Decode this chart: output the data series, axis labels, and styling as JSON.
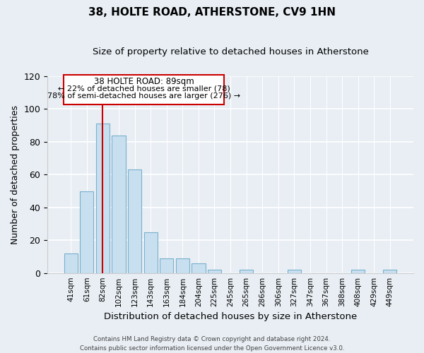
{
  "title": "38, HOLTE ROAD, ATHERSTONE, CV9 1HN",
  "subtitle": "Size of property relative to detached houses in Atherstone",
  "xlabel": "Distribution of detached houses by size in Atherstone",
  "ylabel": "Number of detached properties",
  "bar_labels": [
    "41sqm",
    "61sqm",
    "82sqm",
    "102sqm",
    "123sqm",
    "143sqm",
    "163sqm",
    "184sqm",
    "204sqm",
    "225sqm",
    "245sqm",
    "265sqm",
    "286sqm",
    "306sqm",
    "327sqm",
    "347sqm",
    "367sqm",
    "388sqm",
    "408sqm",
    "429sqm",
    "449sqm"
  ],
  "bar_values": [
    12,
    50,
    91,
    84,
    63,
    25,
    9,
    9,
    6,
    2,
    0,
    2,
    0,
    0,
    2,
    0,
    0,
    0,
    2,
    0,
    2
  ],
  "bar_color": "#c8dff0",
  "bar_edge_color": "#7ab0cc",
  "vline_x": 2,
  "vline_color": "#cc0000",
  "ylim": [
    0,
    120
  ],
  "yticks": [
    0,
    20,
    40,
    60,
    80,
    100,
    120
  ],
  "annotation_title": "38 HOLTE ROAD: 89sqm",
  "annotation_line1": "← 22% of detached houses are smaller (78)",
  "annotation_line2": "78% of semi-detached houses are larger (276) →",
  "annotation_box_color": "#ffffff",
  "annotation_box_edge": "#cc0000",
  "footnote1": "Contains HM Land Registry data © Crown copyright and database right 2024.",
  "footnote2": "Contains public sector information licensed under the Open Government Licence v3.0.",
  "background_color": "#e8eef4"
}
